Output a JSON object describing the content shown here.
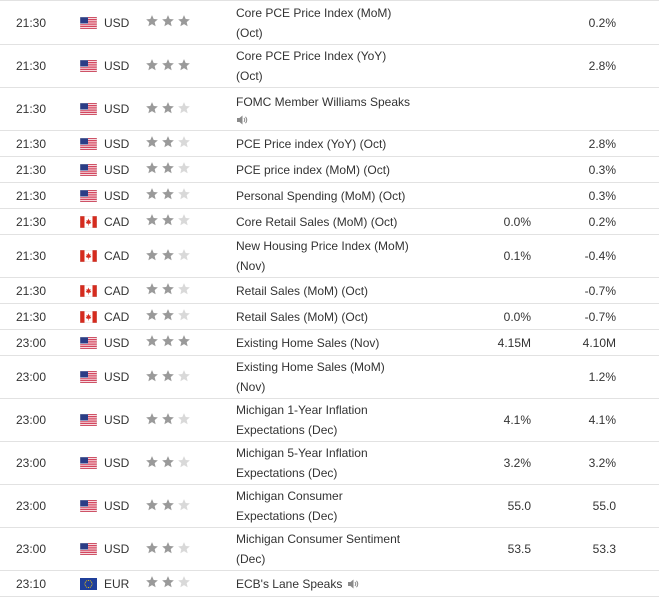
{
  "colors": {
    "star_filled": "#9a9a9a",
    "star_empty": "#d9d9d9",
    "border": "#e2e2e2",
    "text": "#333333"
  },
  "rows": [
    {
      "time": "21:30",
      "flag_icon": "us-flag-icon",
      "currency": "USD",
      "importance": 3,
      "event_line1": "Core PCE Price Index (MoM)",
      "event_line2": "(Oct)",
      "forecast": "",
      "previous": "0.2%",
      "height": 44
    },
    {
      "time": "21:30",
      "flag_icon": "us-flag-icon",
      "currency": "USD",
      "importance": 3,
      "event_line1": "Core PCE Price Index (YoY)",
      "event_line2": "(Oct)",
      "forecast": "",
      "previous": "2.8%",
      "height": 43
    },
    {
      "time": "21:30",
      "flag_icon": "us-flag-icon",
      "currency": "USD",
      "importance": 2,
      "event_line1": "FOMC Member Williams Speaks",
      "event_line2": "",
      "speaker_below": true,
      "forecast": "",
      "previous": "",
      "height": 43
    },
    {
      "time": "21:30",
      "flag_icon": "us-flag-icon",
      "currency": "USD",
      "importance": 2,
      "event_line1": "PCE Price index (YoY) (Oct)",
      "event_line2": "",
      "forecast": "",
      "previous": "2.8%",
      "height": 26
    },
    {
      "time": "21:30",
      "flag_icon": "us-flag-icon",
      "currency": "USD",
      "importance": 2,
      "event_line1": "PCE price index (MoM) (Oct)",
      "event_line2": "",
      "forecast": "",
      "previous": "0.3%",
      "height": 26
    },
    {
      "time": "21:30",
      "flag_icon": "us-flag-icon",
      "currency": "USD",
      "importance": 2,
      "event_line1": "Personal Spending (MoM) (Oct)",
      "event_line2": "",
      "forecast": "",
      "previous": "0.3%",
      "height": 26
    },
    {
      "time": "21:30",
      "flag_icon": "ca-flag-icon",
      "currency": "CAD",
      "importance": 2,
      "event_line1": "Core Retail Sales (MoM) (Oct)",
      "event_line2": "",
      "forecast": "0.0%",
      "previous": "0.2%",
      "height": 26
    },
    {
      "time": "21:30",
      "flag_icon": "ca-flag-icon",
      "currency": "CAD",
      "importance": 2,
      "event_line1": "New Housing Price Index (MoM)",
      "event_line2": "(Nov)",
      "forecast": "0.1%",
      "previous": "-0.4%",
      "height": 43
    },
    {
      "time": "21:30",
      "flag_icon": "ca-flag-icon",
      "currency": "CAD",
      "importance": 2,
      "event_line1": "Retail Sales (MoM) (Oct)",
      "event_line2": "",
      "forecast": "",
      "previous": "-0.7%",
      "height": 26
    },
    {
      "time": "21:30",
      "flag_icon": "ca-flag-icon",
      "currency": "CAD",
      "importance": 2,
      "event_line1": "Retail Sales (MoM) (Oct)",
      "event_line2": "",
      "forecast": "0.0%",
      "previous": "-0.7%",
      "height": 26
    },
    {
      "time": "23:00",
      "flag_icon": "us-flag-icon",
      "currency": "USD",
      "importance": 3,
      "event_line1": "Existing Home Sales (Nov)",
      "event_line2": "",
      "forecast": "4.15M",
      "previous": "4.10M",
      "height": 26
    },
    {
      "time": "23:00",
      "flag_icon": "us-flag-icon",
      "currency": "USD",
      "importance": 2,
      "event_line1": "Existing Home Sales (MoM)",
      "event_line2": "(Nov)",
      "forecast": "",
      "previous": "1.2%",
      "height": 43
    },
    {
      "time": "23:00",
      "flag_icon": "us-flag-icon",
      "currency": "USD",
      "importance": 2,
      "event_line1": "Michigan 1-Year Inflation",
      "event_line2": "Expectations (Dec)",
      "forecast": "4.1%",
      "previous": "4.1%",
      "height": 43
    },
    {
      "time": "23:00",
      "flag_icon": "us-flag-icon",
      "currency": "USD",
      "importance": 2,
      "event_line1": "Michigan 5-Year Inflation",
      "event_line2": "Expectations (Dec)",
      "forecast": "3.2%",
      "previous": "3.2%",
      "height": 43
    },
    {
      "time": "23:00",
      "flag_icon": "us-flag-icon",
      "currency": "USD",
      "importance": 2,
      "event_line1": "Michigan Consumer",
      "event_line2": "Expectations (Dec)",
      "forecast": "55.0",
      "previous": "55.0",
      "height": 43
    },
    {
      "time": "23:00",
      "flag_icon": "us-flag-icon",
      "currency": "USD",
      "importance": 2,
      "event_line1": "Michigan Consumer Sentiment",
      "event_line2": "(Dec)",
      "forecast": "53.5",
      "previous": "53.3",
      "height": 43
    },
    {
      "time": "23:10",
      "flag_icon": "eu-flag-icon",
      "currency": "EUR",
      "importance": 2,
      "event_line1": "ECB's Lane Speaks",
      "event_line2": "",
      "speaker_inline": true,
      "forecast": "",
      "previous": "",
      "height": 26
    }
  ]
}
